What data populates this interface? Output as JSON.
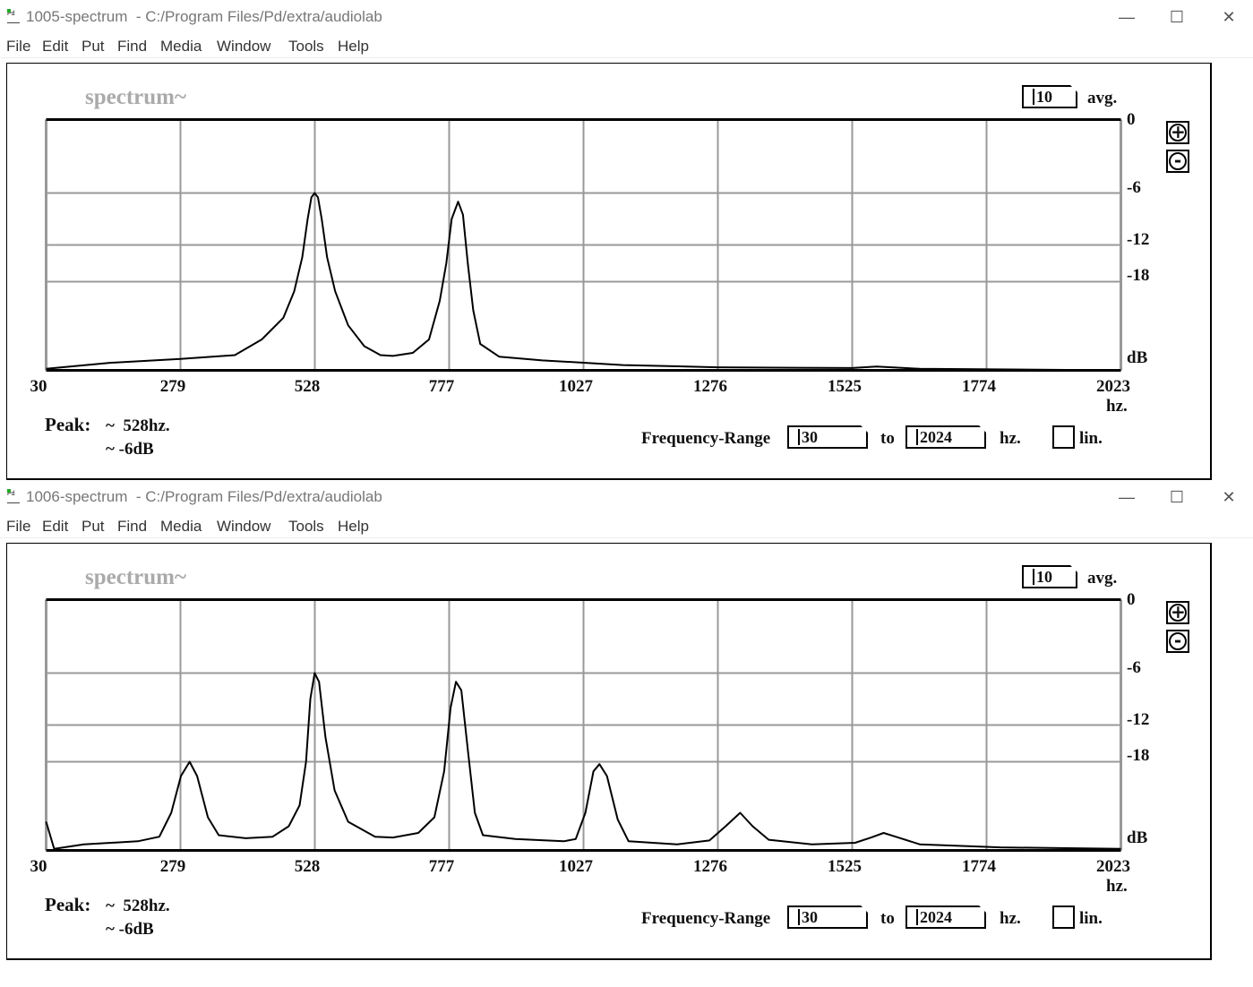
{
  "windows": [
    {
      "title": "1005-spectrum  - C:/Program Files/Pd/extra/audiolab",
      "menu": [
        "File",
        "Edit",
        "Put",
        "Find",
        "Media",
        "Window",
        "Tools",
        "Help"
      ],
      "patch": {
        "title": "spectrum~",
        "avg_value": "10",
        "avg_label": "avg.",
        "peak_label": "Peak:",
        "peak_freq": "~  528hz.",
        "peak_db": "~ -6dB",
        "freq_range_label": "Frequency-Range",
        "range_from": "30",
        "to_label": "to",
        "range_to": "2024",
        "hz_label": "hz.",
        "lin_label": "lin.",
        "lin_checked": false
      },
      "chart_data": {
        "type": "line",
        "xlabel": "hz.",
        "ylabel": "dB",
        "x_ticks": [
          "30",
          "279",
          "528",
          "777",
          "1027",
          "1276",
          "1525",
          "1774",
          "2023"
        ],
        "y_ticks": [
          "0",
          "-6",
          "-12",
          "-18"
        ],
        "xlim": [
          30,
          2023
        ],
        "grid": true,
        "points": [
          [
            30,
            -58
          ],
          [
            150,
            -50
          ],
          [
            279,
            -45
          ],
          [
            380,
            -40
          ],
          [
            430,
            -33
          ],
          [
            470,
            -26
          ],
          [
            490,
            -20
          ],
          [
            505,
            -14
          ],
          [
            515,
            -9
          ],
          [
            522,
            -6.5
          ],
          [
            528,
            -6
          ],
          [
            534,
            -6.5
          ],
          [
            541,
            -9
          ],
          [
            551,
            -14
          ],
          [
            566,
            -20
          ],
          [
            590,
            -28
          ],
          [
            620,
            -36
          ],
          [
            650,
            -40
          ],
          [
            673,
            -41
          ],
          [
            710,
            -39
          ],
          [
            740,
            -33
          ],
          [
            760,
            -22
          ],
          [
            772,
            -15
          ],
          [
            782,
            -9
          ],
          [
            794,
            -7
          ],
          [
            803,
            -8.5
          ],
          [
            812,
            -15
          ],
          [
            822,
            -24
          ],
          [
            835,
            -35
          ],
          [
            870,
            -42
          ],
          [
            950,
            -47
          ],
          [
            1027,
            -50
          ],
          [
            1100,
            -53
          ],
          [
            1276,
            -56
          ],
          [
            1525,
            -57
          ],
          [
            1570,
            -55
          ],
          [
            1650,
            -58
          ],
          [
            2023,
            -60
          ]
        ]
      }
    },
    {
      "title": "1006-spectrum  - C:/Program Files/Pd/extra/audiolab",
      "menu": [
        "File",
        "Edit",
        "Put",
        "Find",
        "Media",
        "Window",
        "Tools",
        "Help"
      ],
      "patch": {
        "title": "spectrum~",
        "avg_value": "10",
        "avg_label": "avg.",
        "peak_label": "Peak:",
        "peak_freq": "~  528hz.",
        "peak_db": "~ -6dB",
        "freq_range_label": "Frequency-Range",
        "range_from": "30",
        "to_label": "to",
        "range_to": "2024",
        "hz_label": "hz.",
        "lin_label": "lin.",
        "lin_checked": false
      },
      "chart_data": {
        "type": "line",
        "xlabel": "hz.",
        "ylabel": "dB",
        "x_ticks": [
          "30",
          "279",
          "528",
          "777",
          "1027",
          "1276",
          "1525",
          "1774",
          "2023"
        ],
        "y_ticks": [
          "0",
          "-6",
          "-12",
          "-18"
        ],
        "xlim": [
          30,
          2023
        ],
        "grid": true,
        "points": [
          [
            30,
            -34
          ],
          [
            45,
            -58
          ],
          [
            100,
            -52
          ],
          [
            200,
            -48
          ],
          [
            240,
            -42
          ],
          [
            262,
            -30
          ],
          [
            280,
            -21
          ],
          [
            296,
            -18
          ],
          [
            310,
            -21
          ],
          [
            330,
            -32
          ],
          [
            350,
            -40
          ],
          [
            400,
            -44
          ],
          [
            450,
            -42
          ],
          [
            480,
            -36
          ],
          [
            500,
            -28
          ],
          [
            512,
            -18
          ],
          [
            520,
            -9
          ],
          [
            528,
            -6
          ],
          [
            536,
            -7
          ],
          [
            548,
            -14
          ],
          [
            565,
            -24
          ],
          [
            590,
            -34
          ],
          [
            640,
            -42
          ],
          [
            673,
            -43
          ],
          [
            720,
            -39
          ],
          [
            750,
            -32
          ],
          [
            768,
            -20
          ],
          [
            780,
            -10
          ],
          [
            790,
            -7
          ],
          [
            800,
            -8
          ],
          [
            812,
            -16
          ],
          [
            825,
            -30
          ],
          [
            840,
            -40
          ],
          [
            900,
            -45
          ],
          [
            990,
            -48
          ],
          [
            1012,
            -45
          ],
          [
            1030,
            -30
          ],
          [
            1045,
            -20
          ],
          [
            1056,
            -18.5
          ],
          [
            1070,
            -21
          ],
          [
            1090,
            -33
          ],
          [
            1110,
            -48
          ],
          [
            1200,
            -52
          ],
          [
            1260,
            -47
          ],
          [
            1290,
            -36
          ],
          [
            1317,
            -30
          ],
          [
            1340,
            -36
          ],
          [
            1370,
            -46
          ],
          [
            1450,
            -52
          ],
          [
            1530,
            -50
          ],
          [
            1560,
            -43
          ],
          [
            1583,
            -39
          ],
          [
            1610,
            -43
          ],
          [
            1650,
            -52
          ],
          [
            1800,
            -56
          ],
          [
            2023,
            -58
          ]
        ]
      }
    }
  ]
}
